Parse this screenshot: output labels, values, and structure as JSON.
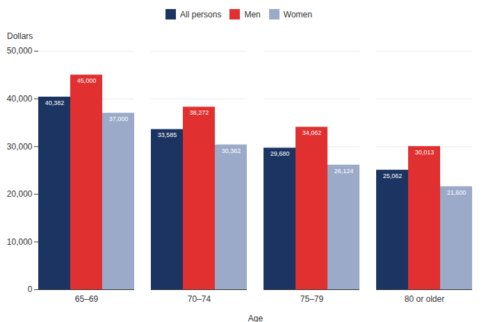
{
  "chart_data": {
    "type": "bar",
    "categories": [
      "65–69",
      "70–74",
      "75–79",
      "80 or older"
    ],
    "series": [
      {
        "name": "All persons",
        "color": "#1c3461",
        "values": [
          40382,
          33585,
          29680,
          25062
        ],
        "value_labels": [
          "40,382",
          "33,585",
          "29,680",
          "25,062"
        ]
      },
      {
        "name": "Men",
        "color": "#e03030",
        "values": [
          45000,
          38272,
          34062,
          30013
        ],
        "value_labels": [
          "45,000",
          "38,272",
          "34,062",
          "30,013"
        ]
      },
      {
        "name": "Women",
        "color": "#9baac8",
        "values": [
          37000,
          30362,
          26124,
          21600
        ],
        "value_labels": [
          "37,000",
          "30,362",
          "26,124",
          "21,600"
        ]
      }
    ],
    "xlabel": "Age",
    "ylabel": "Dollars",
    "ylim": [
      0,
      50000
    ],
    "yticks": [
      0,
      {
        "value": 10000,
        "label": "10,000"
      },
      {
        "value": 20000,
        "label": "20,000"
      },
      {
        "value": 30000,
        "label": "30,000"
      },
      {
        "value": 40000,
        "label": "40,000"
      },
      {
        "value": 50000,
        "label": "50,000"
      }
    ],
    "grid": true,
    "legend": "top",
    "data_labels": true
  }
}
